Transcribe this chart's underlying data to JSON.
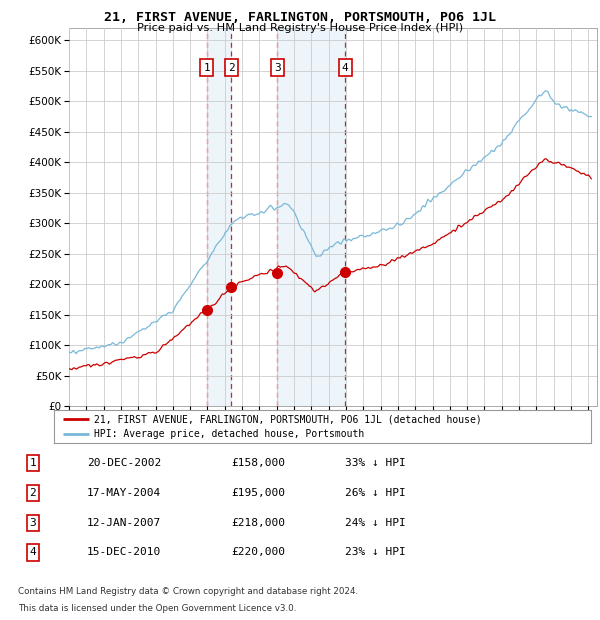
{
  "title": "21, FIRST AVENUE, FARLINGTON, PORTSMOUTH, PO6 1JL",
  "subtitle": "Price paid vs. HM Land Registry's House Price Index (HPI)",
  "legend_line1": "21, FIRST AVENUE, FARLINGTON, PORTSMOUTH, PO6 1JL (detached house)",
  "legend_line2": "HPI: Average price, detached house, Portsmouth",
  "footer1": "Contains HM Land Registry data © Crown copyright and database right 2024.",
  "footer2": "This data is licensed under the Open Government Licence v3.0.",
  "sales": [
    {
      "label": "1",
      "price": 158000,
      "x_num": 2002.97
    },
    {
      "label": "2",
      "price": 195000,
      "x_num": 2004.38
    },
    {
      "label": "3",
      "price": 218000,
      "x_num": 2007.03
    },
    {
      "label": "4",
      "price": 220000,
      "x_num": 2010.96
    }
  ],
  "table_rows": [
    [
      "1",
      "20-DEC-2002",
      "£158,000",
      "33% ↓ HPI"
    ],
    [
      "2",
      "17-MAY-2004",
      "£195,000",
      "26% ↓ HPI"
    ],
    [
      "3",
      "12-JAN-2007",
      "£218,000",
      "24% ↓ HPI"
    ],
    [
      "4",
      "15-DEC-2010",
      "£220,000",
      "23% ↓ HPI"
    ]
  ],
  "vline_pairs": [
    [
      2002.97,
      2004.38
    ],
    [
      2007.03,
      2010.96
    ]
  ],
  "xmin": 1995.0,
  "xmax": 2025.5,
  "ymin": 0,
  "ymax": 620000,
  "yticks": [
    0,
    50000,
    100000,
    150000,
    200000,
    250000,
    300000,
    350000,
    400000,
    450000,
    500000,
    550000,
    600000
  ],
  "xticks": [
    1995,
    1996,
    1997,
    1998,
    1999,
    2000,
    2001,
    2002,
    2003,
    2004,
    2005,
    2006,
    2007,
    2008,
    2009,
    2010,
    2011,
    2012,
    2013,
    2014,
    2015,
    2016,
    2017,
    2018,
    2019,
    2020,
    2021,
    2022,
    2023,
    2024,
    2025
  ],
  "red_color": "#cc0000",
  "blue_color": "#7ab8d9",
  "grid_color": "#cccccc",
  "bg_color": "#ffffff"
}
